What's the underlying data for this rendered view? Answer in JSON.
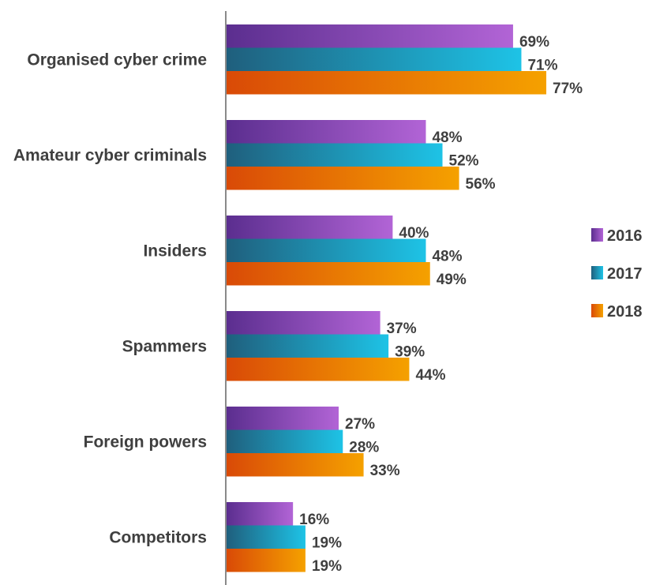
{
  "chart_data": {
    "type": "bar",
    "orientation": "horizontal",
    "categories": [
      "Organised cyber crime",
      "Amateur cyber criminals",
      "Insiders",
      "Spammers",
      "Foreign powers",
      "Competitors"
    ],
    "series": [
      {
        "name": "2016",
        "values": [
          69,
          48,
          40,
          37,
          27,
          16
        ],
        "labels": [
          "69%",
          "48%",
          "40%",
          "37%",
          "27%",
          "16%"
        ],
        "color_start": "#5b2e8f",
        "color_end": "#b264d6"
      },
      {
        "name": "2017",
        "values": [
          71,
          52,
          48,
          39,
          28,
          19
        ],
        "labels": [
          "71%",
          "52%",
          "48%",
          "39%",
          "28%",
          "19%"
        ],
        "color_start": "#1f5f7d",
        "color_end": "#1ec3e6"
      },
      {
        "name": "2018",
        "values": [
          77,
          56,
          49,
          44,
          33,
          19
        ],
        "labels": [
          "77%",
          "56%",
          "49%",
          "44%",
          "33%",
          "19%"
        ],
        "color_start": "#d94a07",
        "color_end": "#f5a100"
      }
    ],
    "xlim": [
      0,
      100
    ],
    "grid": false,
    "legend": "right",
    "axis_color": "#8a8a8a"
  }
}
